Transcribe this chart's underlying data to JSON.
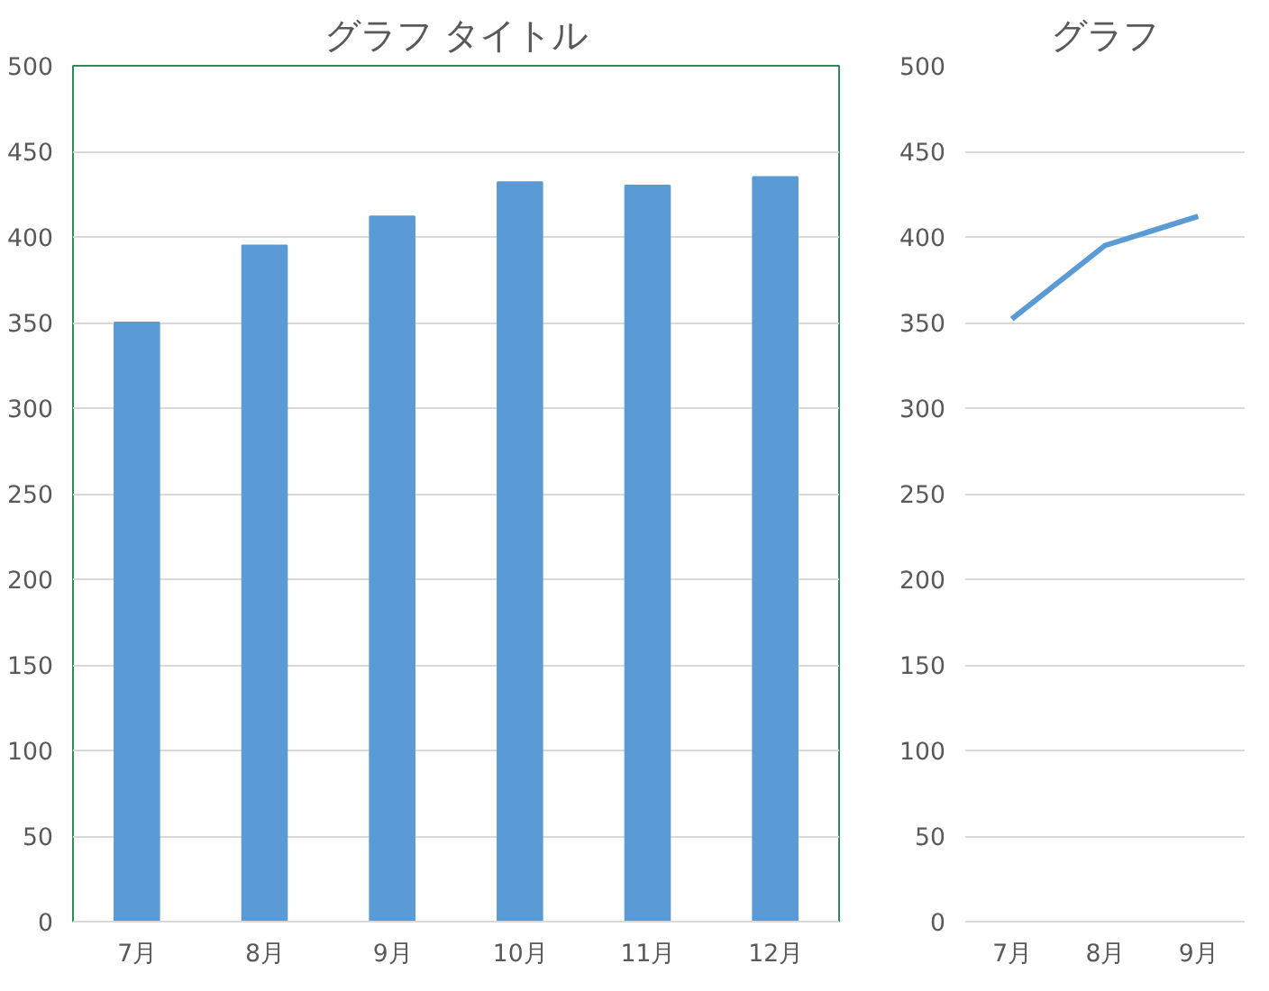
{
  "chart_data": [
    {
      "type": "bar",
      "title": "グラフ タイトル",
      "categories": [
        "7月",
        "8月",
        "9月",
        "10月",
        "11月",
        "12月"
      ],
      "values": [
        350,
        395,
        412,
        432,
        430,
        435
      ],
      "color": "#5b9bd5",
      "ylim": [
        0,
        500
      ],
      "yticks": [
        0,
        50,
        100,
        150,
        200,
        250,
        300,
        350,
        400,
        450,
        500
      ],
      "grid": "y"
    },
    {
      "type": "line",
      "title": "グラフ",
      "categories": [
        "7月",
        "8月",
        "9月"
      ],
      "values": [
        352,
        395,
        412
      ],
      "color": "#5b9bd5",
      "ylim": [
        0,
        500
      ],
      "yticks": [
        0,
        50,
        100,
        150,
        200,
        250,
        300,
        350,
        400,
        450,
        500
      ],
      "grid": "y"
    }
  ]
}
